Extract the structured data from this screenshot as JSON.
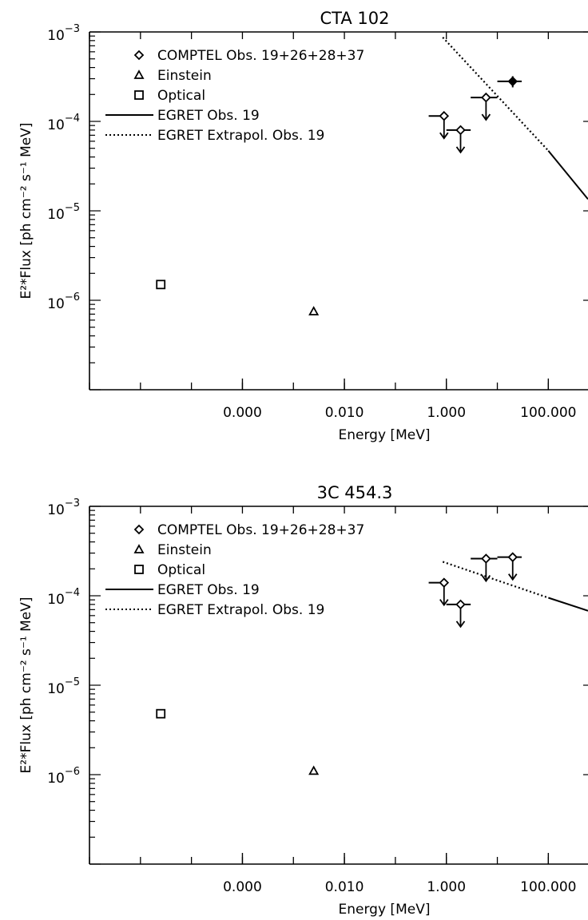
{
  "chart_data": [
    {
      "type": "scatter",
      "title": "CTA 102",
      "xlabel": "Energy [MeV]",
      "ylabel": "E²*Flux [ph cm⁻² s⁻¹ MeV]",
      "xscale": "log",
      "yscale": "log",
      "xlim": [
        1e-07,
        600
      ],
      "ylim": [
        1e-07,
        0.001
      ],
      "x_ticks": [
        {
          "value": 0.0001,
          "label": "0.000"
        },
        {
          "value": 0.01,
          "label": "0.010"
        },
        {
          "value": 1,
          "label": "1.000"
        },
        {
          "value": 100,
          "label": "100.000"
        }
      ],
      "y_ticks": [
        {
          "value": 0.001,
          "base": "10",
          "exp": "−3"
        },
        {
          "value": 0.0001,
          "base": "10",
          "exp": "−4"
        },
        {
          "value": 1e-05,
          "base": "10",
          "exp": "−5"
        },
        {
          "value": 1e-06,
          "base": "10",
          "exp": "−6"
        }
      ],
      "legend": {
        "placement": "top-left",
        "items": [
          "COMPTEL Obs. 19+26+28+37",
          "Einstein",
          "Optical",
          "EGRET Obs. 19",
          "EGRET Extrapol. Obs. 19"
        ]
      },
      "series": [
        {
          "name": "COMPTEL Obs. 19+26+28+37",
          "marker": "diamond",
          "points": [
            {
              "x": 0.9,
              "y": 0.000115,
              "xerr": [
                0.9,
                0.9
              ],
              "upper_limit": true
            },
            {
              "x": 1.9,
              "y": 8e-05,
              "xerr": [
                1.0,
                3.0
              ],
              "upper_limit": true
            },
            {
              "x": 6.0,
              "y": 0.000185,
              "xerr": [
                3.0,
                10.0
              ],
              "upper_limit": true
            },
            {
              "x": 20.0,
              "y": 0.00028,
              "xerr": [
                10.0,
                30.0
              ],
              "upper_limit": false,
              "yerr": [
                0.00024,
                0.00032
              ]
            }
          ]
        },
        {
          "name": "Einstein",
          "marker": "triangle",
          "points": [
            {
              "x": 0.0025,
              "y": 7.5e-07
            }
          ]
        },
        {
          "name": "Optical",
          "marker": "square",
          "points": [
            {
              "x": 2.5e-06,
              "y": 1.5e-06
            }
          ]
        },
        {
          "name": "EGRET Obs. 19",
          "style": "solid",
          "points": [
            {
              "x": 100,
              "y": 4.7e-05
            },
            {
              "x": 600,
              "y": 1.35e-05
            }
          ]
        },
        {
          "name": "EGRET Extrapol. Obs. 19",
          "style": "dotted",
          "points": [
            {
              "x": 0.85,
              "y": 0.00087
            },
            {
              "x": 100,
              "y": 4.7e-05
            }
          ]
        }
      ]
    },
    {
      "type": "scatter",
      "title": "3C 454.3",
      "xlabel": "Energy [MeV]",
      "ylabel": "E²*Flux [ph cm⁻² s⁻¹ MeV]",
      "xscale": "log",
      "yscale": "log",
      "xlim": [
        1e-07,
        600
      ],
      "ylim": [
        1e-07,
        0.001
      ],
      "x_ticks": [
        {
          "value": 0.0001,
          "label": "0.000"
        },
        {
          "value": 0.01,
          "label": "0.010"
        },
        {
          "value": 1,
          "label": "1.000"
        },
        {
          "value": 100,
          "label": "100.000"
        }
      ],
      "y_ticks": [
        {
          "value": 0.001,
          "base": "10",
          "exp": "−3"
        },
        {
          "value": 0.0001,
          "base": "10",
          "exp": "−4"
        },
        {
          "value": 1e-05,
          "base": "10",
          "exp": "−5"
        },
        {
          "value": 1e-06,
          "base": "10",
          "exp": "−6"
        }
      ],
      "legend": {
        "placement": "top-left",
        "items": [
          "COMPTEL Obs. 19+26+28+37",
          "Einstein",
          "Optical",
          "EGRET Obs. 19",
          "EGRET Extrapol. Obs. 19"
        ]
      },
      "series": [
        {
          "name": "COMPTEL Obs. 19+26+28+37",
          "marker": "diamond",
          "points": [
            {
              "x": 0.9,
              "y": 0.00014,
              "xerr": [
                0.9,
                0.9
              ],
              "upper_limit": true
            },
            {
              "x": 1.9,
              "y": 8e-05,
              "xerr": [
                1.0,
                3.0
              ],
              "upper_limit": true
            },
            {
              "x": 6.0,
              "y": 0.00026,
              "xerr": [
                3.0,
                10.0
              ],
              "upper_limit": true
            },
            {
              "x": 20.0,
              "y": 0.00027,
              "xerr": [
                10.0,
                30.0
              ],
              "upper_limit": true
            }
          ]
        },
        {
          "name": "Einstein",
          "marker": "triangle",
          "points": [
            {
              "x": 0.0025,
              "y": 1.1e-06
            }
          ]
        },
        {
          "name": "Optical",
          "marker": "square",
          "points": [
            {
              "x": 2.5e-06,
              "y": 4.8e-06
            }
          ]
        },
        {
          "name": "EGRET Obs. 19",
          "style": "solid",
          "points": [
            {
              "x": 100,
              "y": 9.5e-05
            },
            {
              "x": 600,
              "y": 6.8e-05
            }
          ]
        },
        {
          "name": "EGRET Extrapol. Obs. 19",
          "style": "dotted",
          "points": [
            {
              "x": 0.85,
              "y": 0.00024
            },
            {
              "x": 100,
              "y": 9.5e-05
            }
          ]
        }
      ]
    }
  ]
}
